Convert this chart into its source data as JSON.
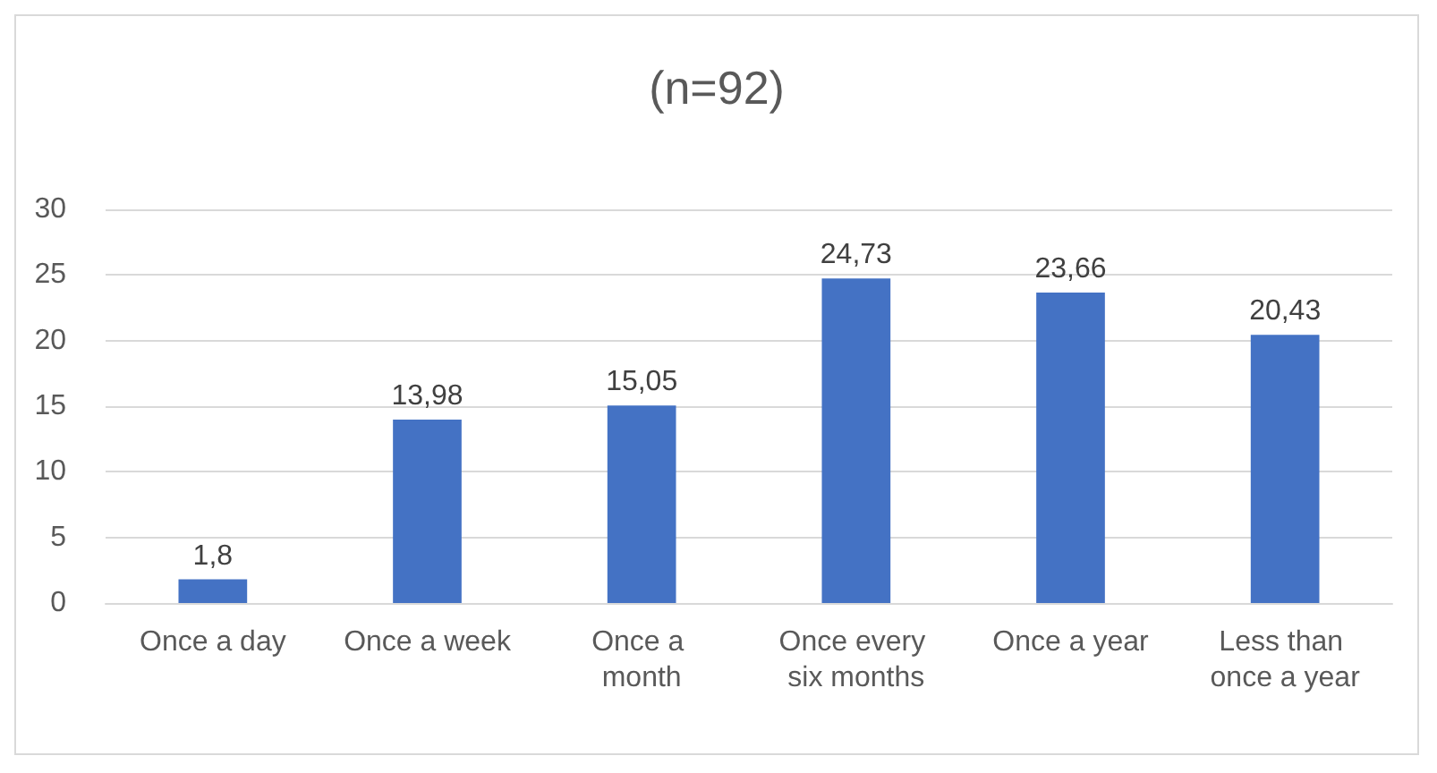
{
  "chart_data": {
    "type": "bar",
    "title": "(n=92)",
    "categories": [
      "Once a day",
      "Once a week",
      "Once a month",
      "Once every six months",
      "Once a year",
      "Less than once a year"
    ],
    "values": [
      1.8,
      13.98,
      15.05,
      24.73,
      23.66,
      20.43
    ],
    "value_labels": [
      "1,8",
      "13,98",
      "15,05",
      "24,73",
      "23,66",
      "20,43"
    ],
    "color": "#4472c4",
    "ylim": [
      0,
      30
    ],
    "yticks": [
      0,
      5,
      10,
      15,
      20,
      25,
      30
    ],
    "grid": "y"
  }
}
